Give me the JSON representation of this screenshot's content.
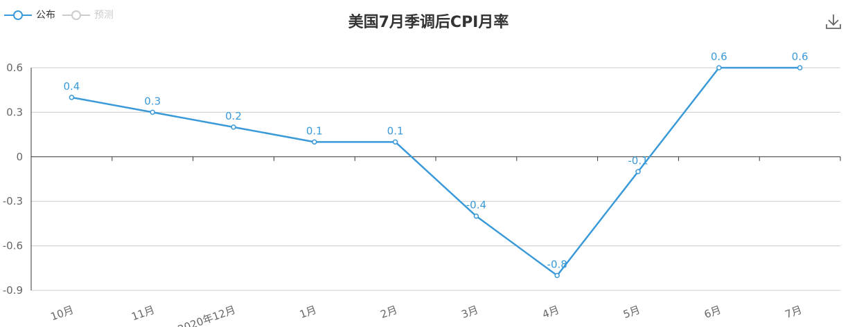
{
  "title": "美国7月季调后CPI月率",
  "legend": [
    {
      "name": "公布",
      "color": "#3a9ad9",
      "active": true
    },
    {
      "name": "预测",
      "color": "#cccccc",
      "active": false
    }
  ],
  "download_icon": "download-icon",
  "chart_data": {
    "type": "line",
    "title": "美国7月季调后CPI月率",
    "categories": [
      "10月",
      "11月",
      "2020年12月",
      "1月",
      "2月",
      "3月",
      "4月",
      "5月",
      "6月",
      "7月"
    ],
    "series": [
      {
        "name": "公布",
        "values": [
          0.4,
          0.3,
          0.2,
          0.1,
          0.1,
          -0.4,
          -0.8,
          -0.1,
          0.6,
          0.6
        ],
        "color": "#3a9ad9"
      }
    ],
    "ylim": [
      -0.9,
      0.6
    ],
    "yticks": [
      "0.6",
      "0.3",
      "0",
      "-0.3",
      "-0.6",
      "-0.9"
    ],
    "ytick_values": [
      0.6,
      0.3,
      0,
      -0.3,
      -0.6,
      -0.9
    ],
    "grid": true,
    "legend_position": "top-left"
  }
}
